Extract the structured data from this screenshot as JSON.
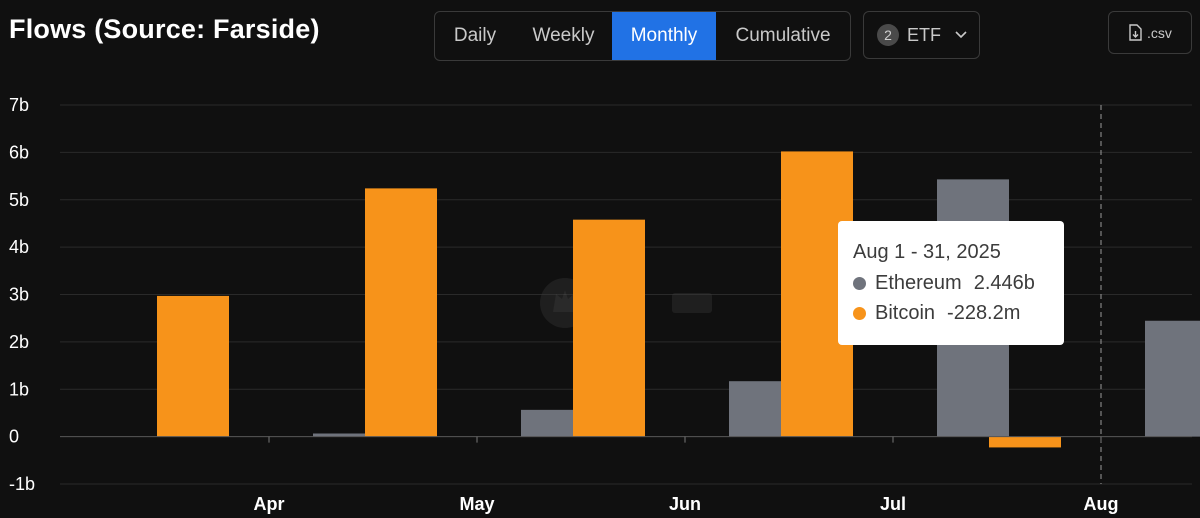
{
  "header": {
    "title": "Flows (Source: Farside)"
  },
  "tabs": [
    {
      "label": "Daily",
      "active": false
    },
    {
      "label": "Weekly",
      "active": false
    },
    {
      "label": "Monthly",
      "active": true
    },
    {
      "label": "Cumulative",
      "active": false
    }
  ],
  "filter": {
    "count": "2",
    "label": "ETF",
    "icon": "chevron-down-icon"
  },
  "export": {
    "label": ".csv",
    "icon": "file-download-icon"
  },
  "colors": {
    "bitcoin": "#f7931a",
    "ethereum": "#6f737c",
    "accent": "#2172e5"
  },
  "tooltip": {
    "title": "Aug 1 - 31, 2025",
    "rows": [
      {
        "name": "Ethereum",
        "value": "2.446b",
        "color": "#6f737c"
      },
      {
        "name": "Bitcoin",
        "value": "-228.2m",
        "color": "#f7931a"
      }
    ]
  },
  "chart_data": {
    "type": "bar",
    "categories": [
      "Apr",
      "May",
      "Jun",
      "Jul",
      "Aug"
    ],
    "series": [
      {
        "name": "Bitcoin",
        "values": [
          2.97,
          5.24,
          4.58,
          6.02,
          -0.228
        ]
      },
      {
        "name": "Ethereum",
        "values": [
          0.066,
          0.565,
          1.17,
          5.43,
          2.446
        ]
      }
    ],
    "y_ticks": [
      "7b",
      "6b",
      "5b",
      "4b",
      "3b",
      "2b",
      "1b",
      "0",
      "-1b"
    ],
    "ylim": [
      -1,
      7
    ],
    "grid": true,
    "highlighted_category": "Aug"
  }
}
